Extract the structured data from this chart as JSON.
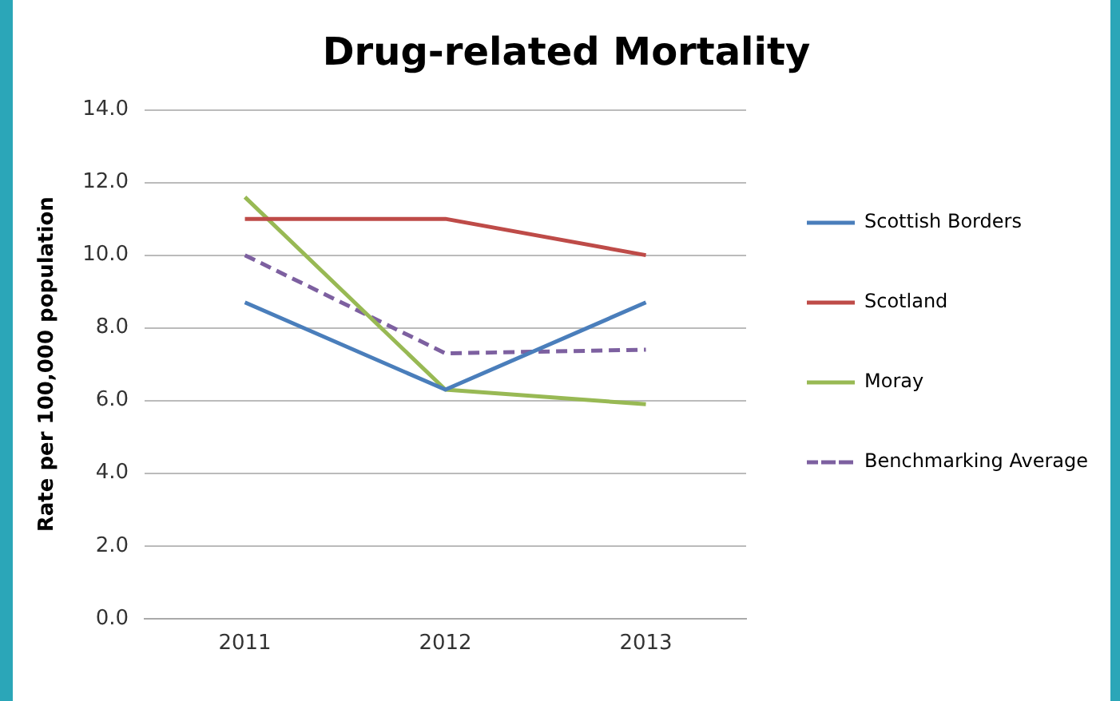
{
  "chart_data": {
    "type": "line",
    "title": "Drug-related Mortality",
    "ylabel": "Rate per 100,000 population",
    "categories": [
      "2011",
      "2012",
      "2013"
    ],
    "series": [
      {
        "name": "Scottish Borders",
        "color": "#4a7ebb",
        "values": [
          8.7,
          6.3,
          8.7
        ]
      },
      {
        "name": "Scotland",
        "color": "#be4b48",
        "values": [
          11.0,
          11.0,
          10.0
        ]
      },
      {
        "name": "Moray",
        "color": "#98b954",
        "values": [
          11.6,
          6.3,
          5.9
        ]
      },
      {
        "name": "Benchmarking Average",
        "color": "#7d60a0",
        "values": [
          10.0,
          7.3,
          7.4
        ],
        "line_style": "dashed"
      }
    ],
    "ylim": [
      0,
      14
    ],
    "yticks": [
      {
        "value": 0,
        "label": "0.0"
      },
      {
        "value": 2,
        "label": "2.0"
      },
      {
        "value": 4,
        "label": "4.0"
      },
      {
        "value": 6,
        "label": "6.0"
      },
      {
        "value": 8,
        "label": "8.0"
      },
      {
        "value": 10,
        "label": "10.0"
      },
      {
        "value": 12,
        "label": "12.0"
      },
      {
        "value": 14,
        "label": "14.0"
      }
    ],
    "grid": "y",
    "legend": "right",
    "marker": "none"
  }
}
